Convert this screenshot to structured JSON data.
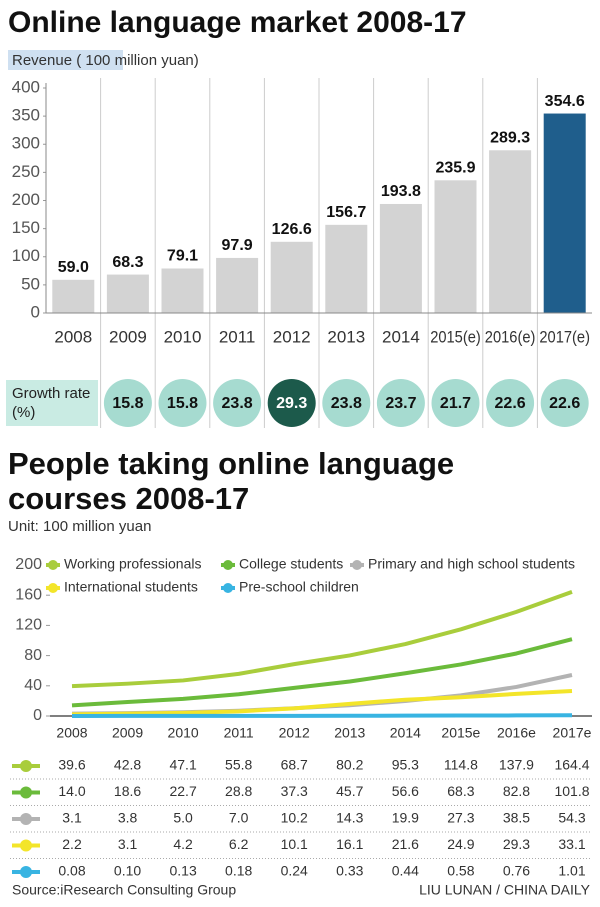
{
  "chart_data": [
    {
      "type": "bar",
      "title": "Online language market 2008-17",
      "y_label": "Revenue ( 100 million yuan)",
      "categories": [
        "2008",
        "2009",
        "2010",
        "2011",
        "2012",
        "2013",
        "2014",
        "2015(e)",
        "2016(e)",
        "2017(e)"
      ],
      "values": [
        59.0,
        68.3,
        79.1,
        97.9,
        126.6,
        156.7,
        193.8,
        235.9,
        289.3,
        354.6
      ],
      "value_labels": [
        "59.0",
        "68.3",
        "79.1",
        "97.9",
        "126.6",
        "156.7",
        "193.8",
        "235.9",
        "289.3",
        "354.6"
      ],
      "colors": [
        "#d3d3d3",
        "#d3d3d3",
        "#d3d3d3",
        "#d3d3d3",
        "#d3d3d3",
        "#d3d3d3",
        "#d3d3d3",
        "#d3d3d3",
        "#d3d3d3",
        "#1f5e8c"
      ],
      "ylim": [
        0,
        400
      ],
      "yticks": [
        0,
        50,
        100,
        150,
        200,
        250,
        300,
        350,
        400
      ],
      "grid": false,
      "growth": {
        "label": "Growth rate (%)",
        "values": [
          null,
          15.8,
          15.8,
          23.8,
          29.3,
          23.8,
          23.7,
          21.7,
          22.6,
          22.6
        ],
        "colors": [
          null,
          "#a6dbd0",
          "#a6dbd0",
          "#a6dbd0",
          "#1c5a4b",
          "#a6dbd0",
          "#a6dbd0",
          "#a6dbd0",
          "#a6dbd0",
          "#a6dbd0"
        ]
      }
    },
    {
      "type": "line",
      "title": "People taking online language courses 2008-17",
      "subtitle": "Unit: 100 million yuan",
      "categories": [
        "2008",
        "2009",
        "2010",
        "2011",
        "2012",
        "2013",
        "2014",
        "2015e",
        "2016e",
        "2017e"
      ],
      "ylim": [
        0,
        200
      ],
      "yticks": [
        0,
        40,
        80,
        120,
        160,
        200
      ],
      "grid": false,
      "series": [
        {
          "name": "Working professionals",
          "color": "#a9cd3c",
          "values": [
            39.6,
            42.8,
            47.1,
            55.8,
            68.7,
            80.2,
            95.3,
            114.8,
            137.9,
            164.4
          ]
        },
        {
          "name": "College students",
          "color": "#6bbb3b",
          "values": [
            14.0,
            18.6,
            22.7,
            28.8,
            37.3,
            45.7,
            56.6,
            68.3,
            82.8,
            101.8
          ],
          "value_labels": [
            "14.0",
            "18.6",
            "22.7",
            "28.8",
            "37.3",
            "45.7",
            "56.6",
            "68.3",
            "82.8",
            "101.8"
          ]
        },
        {
          "name": "Primary and high school students",
          "color": "#b3b3b3",
          "values": [
            3.1,
            3.8,
            5.0,
            7.0,
            10.2,
            14.3,
            19.9,
            27.3,
            38.5,
            54.3
          ],
          "value_labels": [
            "3.1",
            "3.8",
            "5.0",
            "7.0",
            "10.2",
            "14.3",
            "19.9",
            "27.3",
            "38.5",
            "54.3"
          ]
        },
        {
          "name": "International students",
          "color": "#f3e52a",
          "values": [
            2.2,
            3.1,
            4.2,
            6.2,
            10.1,
            16.1,
            21.6,
            24.9,
            29.3,
            33.1
          ]
        },
        {
          "name": "Pre-school children",
          "color": "#38b4e2",
          "values": [
            0.08,
            0.1,
            0.13,
            0.18,
            0.24,
            0.33,
            0.44,
            0.58,
            0.76,
            1.01
          ],
          "value_labels": [
            "0.08",
            "0.10",
            "0.13",
            "0.18",
            "0.24",
            "0.33",
            "0.44",
            "0.58",
            "0.76",
            "1.01"
          ]
        }
      ]
    }
  ],
  "footer": {
    "source": "Source:iResearch Consulting Group",
    "credit": "LIU LUNAN / CHINA DAILY"
  }
}
